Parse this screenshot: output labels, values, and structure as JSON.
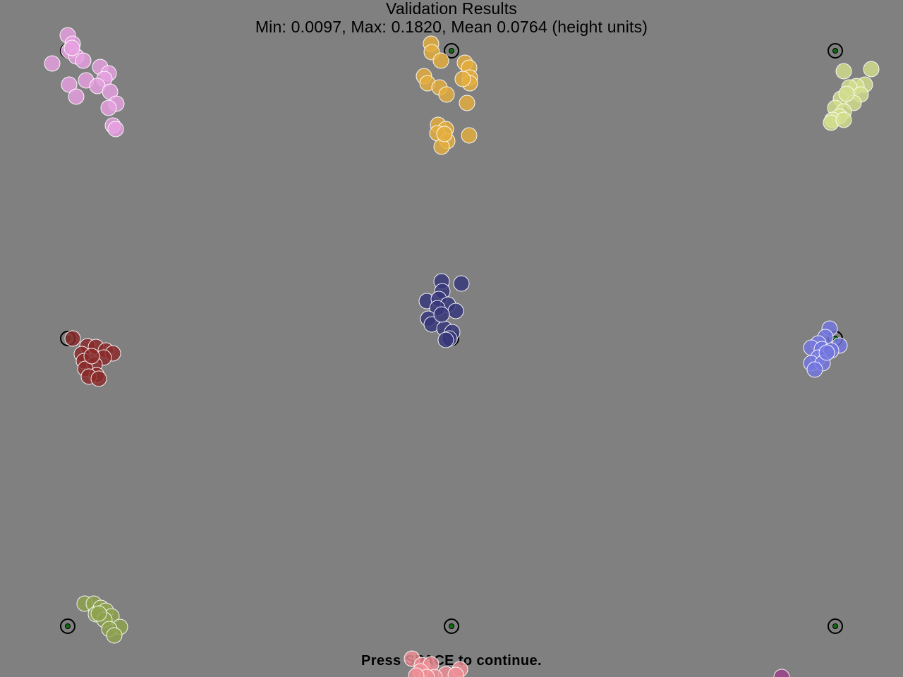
{
  "screen": {
    "title": "Validation Results",
    "summary": "Min: 0.0097, Max: 0.1820, Mean 0.0764 (height units)",
    "prompt": "Press SPACE to continue."
  },
  "colors": {
    "background": "#808080",
    "target_outline": "#000000",
    "target_center": "#0f6b0f",
    "sample_outline": "#ffffff"
  },
  "targets": [
    {
      "id": "top-left",
      "color": "#e7a0e0"
    },
    {
      "id": "top-center",
      "color": "#e4ad3c"
    },
    {
      "id": "top-right",
      "color": "#d3de8c"
    },
    {
      "id": "middle-left",
      "color": "#8a2a2a"
    },
    {
      "id": "middle-center",
      "color": "#36367a"
    },
    {
      "id": "middle-right",
      "color": "#7476e0"
    },
    {
      "id": "bottom-left",
      "color": "#8da24e"
    },
    {
      "id": "bottom-center",
      "color": "#ef8f96"
    },
    {
      "id": "bottom-right",
      "color": "#9c3f8c"
    }
  ]
}
